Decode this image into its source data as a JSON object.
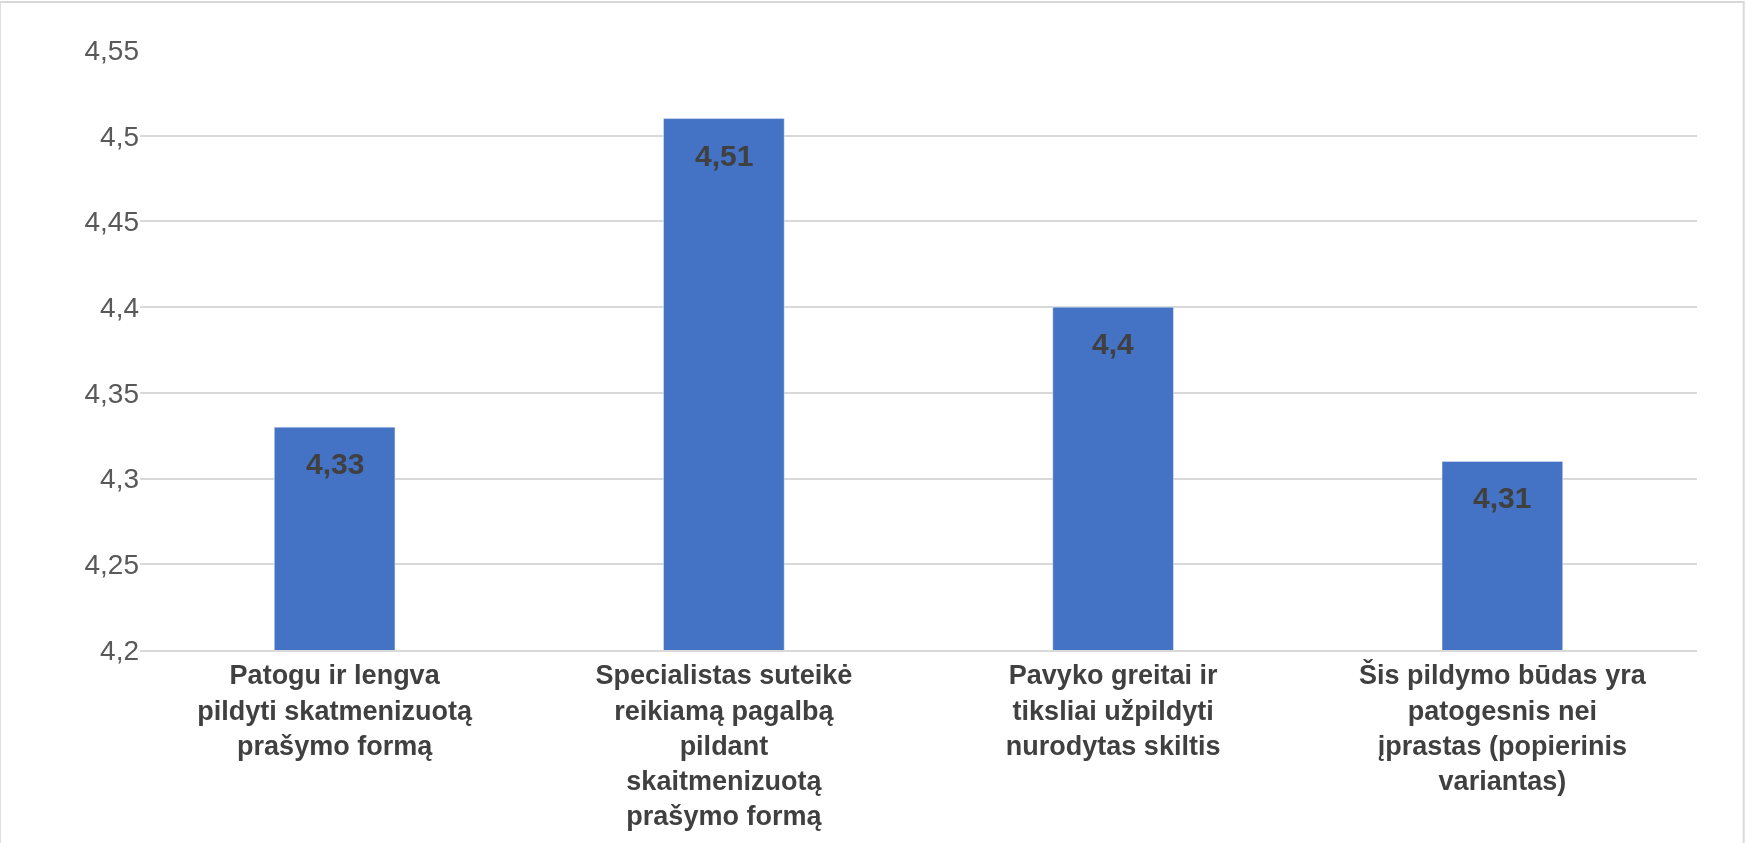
{
  "chart_data": {
    "type": "bar",
    "categories": [
      "Patogu ir lengva pildyti skatmenizuotą prašymo formą",
      "Specialistas suteikė reikiamą pagalbą pildant skaitmenizuotą prašymo formą",
      "Pavyko greitai ir tiksliai užpildyti nurodytas skiltis",
      "Šis pildymo būdas yra patogesnis nei įprastas (popierinis variantas)"
    ],
    "values": [
      4.33,
      4.51,
      4.4,
      4.31
    ],
    "value_labels": [
      "4,33",
      "4,51",
      "4,4",
      "4,31"
    ],
    "color": "#4472c4",
    "ylim": [
      4.2,
      4.55
    ],
    "yticks": [
      {
        "value": 4.2,
        "label": "4,2"
      },
      {
        "value": 4.25,
        "label": "4,25"
      },
      {
        "value": 4.3,
        "label": "4,3"
      },
      {
        "value": 4.35,
        "label": "4,35"
      },
      {
        "value": 4.4,
        "label": "4,4"
      },
      {
        "value": 4.45,
        "label": "4,45"
      },
      {
        "value": 4.5,
        "label": "4,5"
      },
      {
        "value": 4.55,
        "label": "4,55"
      }
    ],
    "grid": "y",
    "legend": false
  }
}
